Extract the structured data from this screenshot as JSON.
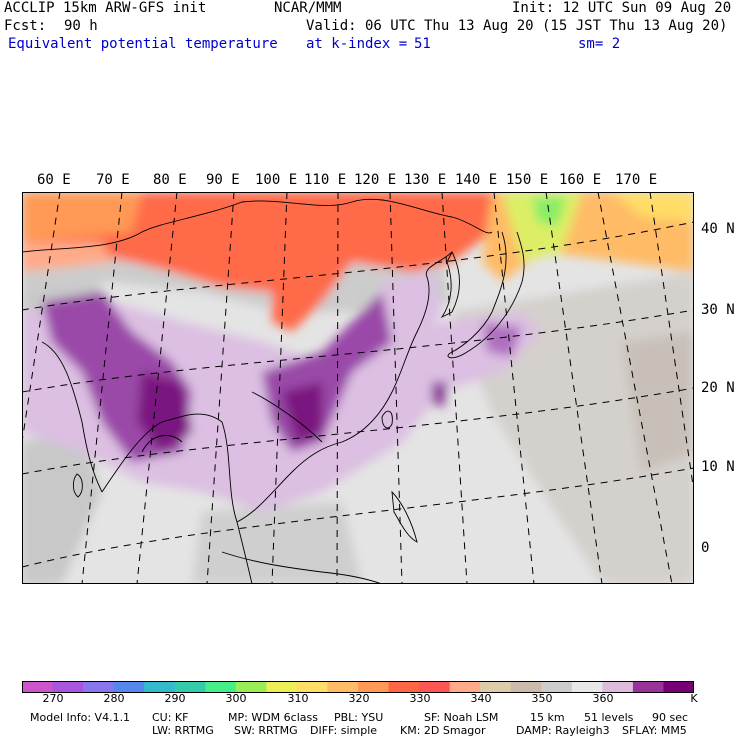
{
  "header": {
    "model": "ACCLIP 15km ARW-GFS init",
    "org": "NCAR/MMM",
    "init": "Init: 12 UTC Sun 09 Aug 20",
    "fcst_label": "Fcst:",
    "fcst_value": "90 h",
    "valid": "Valid: 06 UTC Thu 13 Aug 20 (15 JST Thu 13 Aug 20)",
    "field": "Equivalent potential temperature",
    "level": "at k-index =",
    "level_value": "51",
    "smooth": "sm= 2"
  },
  "map": {
    "region": "Asia / Western Pacific",
    "lon_labels": [
      "60 E",
      "70 E",
      "80 E",
      "90 E",
      "100 E",
      "110 E",
      "120 E",
      "130 E",
      "140 E",
      "150 E",
      "160 E",
      "170 E"
    ],
    "lat_labels": [
      "40 N",
      "30 N",
      "20 N",
      "10 N",
      "0"
    ]
  },
  "colorbar": {
    "colors": [
      "#cc55cc",
      "#aa55dd",
      "#8877ee",
      "#5588ee",
      "#33bbcc",
      "#33ccaa",
      "#44ee88",
      "#99ee55",
      "#eeee55",
      "#ffdd66",
      "#ffbb66",
      "#ff9955",
      "#ff6644",
      "#ff5555",
      "#ffaa88",
      "#ddccaa",
      "#ccbbaa",
      "#cccccc",
      "#e8e8e8",
      "#ddbbdd",
      "#993399",
      "#770077"
    ],
    "labels": [
      "270",
      "280",
      "290",
      "300",
      "310",
      "320",
      "330",
      "340",
      "350",
      "360"
    ],
    "unit": "K"
  },
  "model_info": {
    "line1": [
      "Model Info: V4.1.1",
      "CU: KF",
      "MP: WDM 6class",
      "PBL: YSU",
      "SF: Noah LSM",
      "15 km",
      "51 levels",
      "90 sec"
    ],
    "line2": [
      "LW: RRTMG",
      "SW: RRTMG",
      "DIFF: simple",
      "KM: 2D Smagor",
      "DAMP: Rayleigh3",
      "SFLAY: MM5"
    ]
  }
}
